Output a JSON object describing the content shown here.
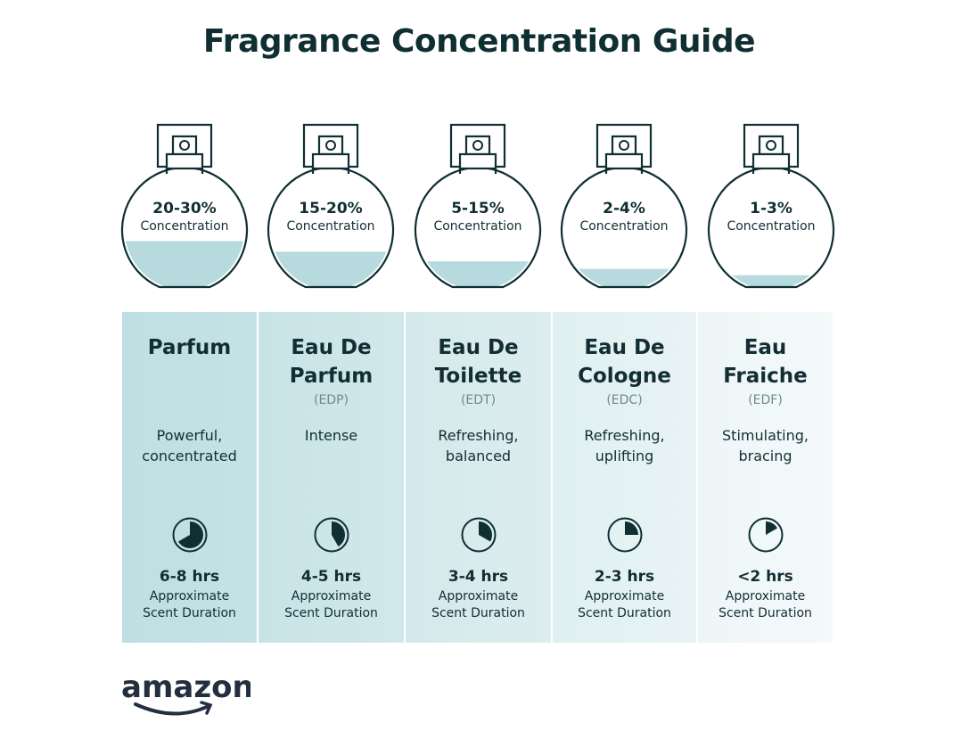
{
  "title": "Fragrance Concentration Guide",
  "concentration_label": "Concentration",
  "duration_label_line1": "Approximate",
  "duration_label_line2": "Scent Duration",
  "colors": {
    "text": "#0f2f33",
    "liquid": "#b6dadd",
    "panel_dark": "#bddfe2",
    "panel_light": "#f0f7f8"
  },
  "types": [
    {
      "percent": "20-30%",
      "fill_level": 0.38,
      "name_line1": "Parfum",
      "name_line2": "",
      "abbr": "",
      "desc_line1": "Powerful,",
      "desc_line2": "concentrated",
      "hours": "6-8 hrs",
      "clock_fraction": 0.667
    },
    {
      "percent": "15-20%",
      "fill_level": 0.28,
      "name_line1": "Eau De",
      "name_line2": "Parfum",
      "abbr": "(EDP)",
      "desc_line1": "Intense",
      "desc_line2": "",
      "hours": "4-5 hrs",
      "clock_fraction": 0.417
    },
    {
      "percent": "5-15%",
      "fill_level": 0.19,
      "name_line1": "Eau De",
      "name_line2": "Toilette",
      "abbr": "(EDT)",
      "desc_line1": "Refreshing,",
      "desc_line2": "balanced",
      "hours": "3-4 hrs",
      "clock_fraction": 0.333
    },
    {
      "percent": "2-4%",
      "fill_level": 0.12,
      "name_line1": "Eau De",
      "name_line2": "Cologne",
      "abbr": "(EDC)",
      "desc_line1": "Refreshing,",
      "desc_line2": "uplifting",
      "hours": "2-3 hrs",
      "clock_fraction": 0.25
    },
    {
      "percent": "1-3%",
      "fill_level": 0.06,
      "name_line1": "Eau",
      "name_line2": "Fraiche",
      "abbr": "(EDF)",
      "desc_line1": "Stimulating,",
      "desc_line2": "bracing",
      "hours": "<2 hrs",
      "clock_fraction": 0.167
    }
  ],
  "logo": {
    "text": "amazon"
  }
}
